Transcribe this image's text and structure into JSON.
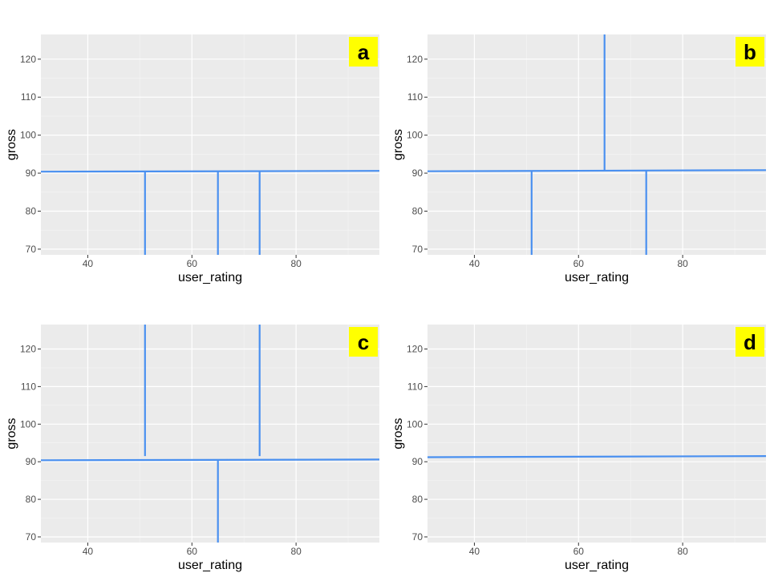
{
  "chart_data": [
    {
      "type": "line",
      "panel_label": "a",
      "xlabel": "user_rating",
      "ylabel": "gross",
      "xlim": [
        31,
        96
      ],
      "ylim": [
        68.5,
        126.5
      ],
      "xticks": [
        40,
        60,
        80
      ],
      "yticks": [
        70,
        80,
        90,
        100,
        110,
        120
      ],
      "grid": true,
      "series": [
        {
          "x": [
            31,
            96
          ],
          "y": [
            90.4,
            90.6
          ]
        },
        {
          "x": [
            51,
            51
          ],
          "y": [
            68.5,
            90.5
          ]
        },
        {
          "x": [
            65,
            65
          ],
          "y": [
            68.5,
            90.5
          ]
        },
        {
          "x": [
            73,
            73
          ],
          "y": [
            68.5,
            90.5
          ]
        }
      ]
    },
    {
      "type": "line",
      "panel_label": "b",
      "xlabel": "user_rating",
      "ylabel": "gross",
      "xlim": [
        31,
        96
      ],
      "ylim": [
        68.5,
        126.5
      ],
      "xticks": [
        40,
        60,
        80
      ],
      "yticks": [
        70,
        80,
        90,
        100,
        110,
        120
      ],
      "grid": true,
      "series": [
        {
          "x": [
            31,
            96
          ],
          "y": [
            90.5,
            90.8
          ]
        },
        {
          "x": [
            65,
            65
          ],
          "y": [
            90.6,
            126.5
          ]
        },
        {
          "x": [
            51,
            51
          ],
          "y": [
            68.5,
            90.6
          ]
        },
        {
          "x": [
            73,
            73
          ],
          "y": [
            68.5,
            90.6
          ]
        }
      ]
    },
    {
      "type": "line",
      "panel_label": "c",
      "xlabel": "user_rating",
      "ylabel": "gross",
      "xlim": [
        31,
        96
      ],
      "ylim": [
        68.5,
        126.5
      ],
      "xticks": [
        40,
        60,
        80
      ],
      "yticks": [
        70,
        80,
        90,
        100,
        110,
        120
      ],
      "grid": true,
      "series": [
        {
          "x": [
            31,
            96
          ],
          "y": [
            90.4,
            90.6
          ]
        },
        {
          "x": [
            51,
            51
          ],
          "y": [
            91.5,
            126.5
          ]
        },
        {
          "x": [
            73,
            73
          ],
          "y": [
            91.5,
            126.5
          ]
        },
        {
          "x": [
            65,
            65
          ],
          "y": [
            68.5,
            90.5
          ]
        }
      ]
    },
    {
      "type": "line",
      "panel_label": "d",
      "xlabel": "user_rating",
      "ylabel": "gross",
      "xlim": [
        31,
        96
      ],
      "ylim": [
        68.5,
        126.5
      ],
      "xticks": [
        40,
        60,
        80
      ],
      "yticks": [
        70,
        80,
        90,
        100,
        110,
        120
      ],
      "grid": true,
      "series": [
        {
          "x": [
            31,
            96
          ],
          "y": [
            91.2,
            91.5
          ]
        }
      ]
    }
  ],
  "colors": {
    "line": "#4a90f0",
    "panel_background": "#ebebeb",
    "badge_background": "#ffff00"
  }
}
